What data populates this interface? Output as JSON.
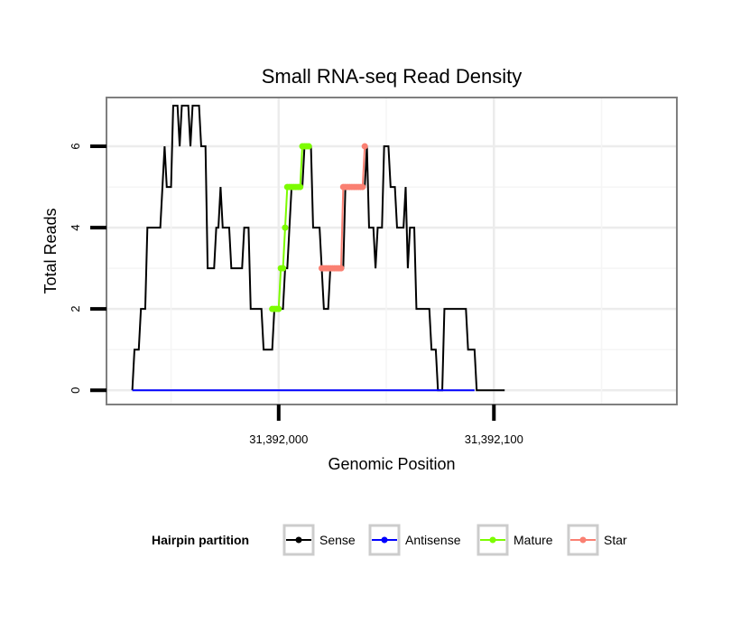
{
  "chart_data": {
    "type": "line",
    "title": "Small RNA-seq Read Density",
    "xlabel": "Genomic Position",
    "ylabel": "Total Reads",
    "xlim": [
      31391920,
      31392185
    ],
    "ylim": [
      -0.35,
      7.2
    ],
    "x_ticks": [
      {
        "value": 31392000,
        "label": "31,392,000"
      },
      {
        "value": 31392100,
        "label": "31,392,100"
      }
    ],
    "y_ticks": [
      {
        "value": 0,
        "label": "0"
      },
      {
        "value": 2,
        "label": "2"
      },
      {
        "value": 4,
        "label": "4"
      },
      {
        "value": 6,
        "label": "6"
      }
    ],
    "grid": true,
    "legend": {
      "title": "Hairpin partition",
      "placement": "bottom",
      "entries": [
        {
          "name": "Sense",
          "color": "#000000"
        },
        {
          "name": "Antisense",
          "color": "#0000ff"
        },
        {
          "name": "Mature",
          "color": "#7cfc00"
        },
        {
          "name": "Star",
          "color": "#fa8072"
        }
      ]
    },
    "series": [
      {
        "name": "Sense",
        "color": "#000000",
        "step": true,
        "points": [
          [
            31391932,
            0
          ],
          [
            31391933,
            1
          ],
          [
            31391935,
            1
          ],
          [
            31391936,
            2
          ],
          [
            31391938,
            2
          ],
          [
            31391939,
            4
          ],
          [
            31391941,
            4
          ],
          [
            31391943,
            4
          ],
          [
            31391945,
            4
          ],
          [
            31391946,
            5
          ],
          [
            31391947,
            6
          ],
          [
            31391948,
            5
          ],
          [
            31391950,
            5
          ],
          [
            31391951,
            7
          ],
          [
            31391953,
            7
          ],
          [
            31391954,
            6
          ],
          [
            31391955,
            7
          ],
          [
            31391957,
            7
          ],
          [
            31391958,
            7
          ],
          [
            31391959,
            6
          ],
          [
            31391960,
            7
          ],
          [
            31391963,
            7
          ],
          [
            31391964,
            6
          ],
          [
            31391966,
            6
          ],
          [
            31391967,
            3
          ],
          [
            31391970,
            3
          ],
          [
            31391971,
            4
          ],
          [
            31391972,
            4
          ],
          [
            31391973,
            5
          ],
          [
            31391974,
            4
          ],
          [
            31391977,
            4
          ],
          [
            31391978,
            3
          ],
          [
            31391982,
            3
          ],
          [
            31391983,
            3
          ],
          [
            31391984,
            4
          ],
          [
            31391986,
            4
          ],
          [
            31391987,
            2
          ],
          [
            31391990,
            2
          ],
          [
            31391992,
            2
          ],
          [
            31391993,
            1
          ],
          [
            31391996,
            1
          ],
          [
            31391997,
            1
          ],
          [
            31391998,
            2
          ],
          [
            31392000,
            2
          ],
          [
            31392002,
            2
          ],
          [
            31392003,
            3
          ],
          [
            31392004,
            3
          ],
          [
            31392005,
            4
          ],
          [
            31392006,
            5
          ],
          [
            31392011,
            5
          ],
          [
            31392012,
            6
          ],
          [
            31392013,
            6
          ],
          [
            31392015,
            6
          ],
          [
            31392016,
            4
          ],
          [
            31392018,
            4
          ],
          [
            31392019,
            4
          ],
          [
            31392020,
            3
          ],
          [
            31392021,
            2
          ],
          [
            31392023,
            2
          ],
          [
            31392024,
            3
          ],
          [
            31392029,
            3
          ],
          [
            31392030,
            3
          ],
          [
            31392031,
            5
          ],
          [
            31392032,
            5
          ],
          [
            31392040,
            5
          ],
          [
            31392041,
            6
          ],
          [
            31392042,
            4
          ],
          [
            31392044,
            4
          ],
          [
            31392045,
            3
          ],
          [
            31392046,
            4
          ],
          [
            31392048,
            4
          ],
          [
            31392049,
            6
          ],
          [
            31392051,
            6
          ],
          [
            31392052,
            5
          ],
          [
            31392053,
            5
          ],
          [
            31392054,
            5
          ],
          [
            31392055,
            4
          ],
          [
            31392058,
            4
          ],
          [
            31392059,
            5
          ],
          [
            31392060,
            3
          ],
          [
            31392061,
            4
          ],
          [
            31392063,
            4
          ],
          [
            31392064,
            2
          ],
          [
            31392066,
            2
          ],
          [
            31392069,
            2
          ],
          [
            31392070,
            2
          ],
          [
            31392071,
            1
          ],
          [
            31392073,
            1
          ],
          [
            31392074,
            0
          ],
          [
            31392076,
            0
          ],
          [
            31392077,
            2
          ],
          [
            31392082,
            2
          ],
          [
            31392087,
            2
          ],
          [
            31392088,
            1
          ],
          [
            31392091,
            1
          ],
          [
            31392092,
            0
          ],
          [
            31392095,
            0
          ],
          [
            31392100,
            0
          ],
          [
            31392103,
            0
          ],
          [
            31392105,
            0
          ]
        ]
      },
      {
        "name": "Antisense",
        "color": "#0000ff",
        "step": false,
        "points": [
          [
            31391932,
            0
          ],
          [
            31392091,
            0
          ]
        ]
      },
      {
        "name": "Mature",
        "color": "#7cfc00",
        "step": false,
        "points": [
          [
            31391997,
            2
          ],
          [
            31391998,
            2
          ],
          [
            31391999,
            2
          ],
          [
            31392000,
            2
          ],
          [
            31392001,
            3
          ],
          [
            31392002,
            3
          ],
          [
            31392003,
            4
          ],
          [
            31392004,
            5
          ],
          [
            31392005,
            5
          ],
          [
            31392006,
            5
          ],
          [
            31392007,
            5
          ],
          [
            31392008,
            5
          ],
          [
            31392009,
            5
          ],
          [
            31392010,
            5
          ],
          [
            31392011,
            6
          ],
          [
            31392012,
            6
          ],
          [
            31392013,
            6
          ],
          [
            31392014,
            6
          ]
        ]
      },
      {
        "name": "Star",
        "color": "#fa8072",
        "step": false,
        "points": [
          [
            31392020,
            3
          ],
          [
            31392021,
            3
          ],
          [
            31392022,
            3
          ],
          [
            31392023,
            3
          ],
          [
            31392024,
            3
          ],
          [
            31392025,
            3
          ],
          [
            31392026,
            3
          ],
          [
            31392027,
            3
          ],
          [
            31392028,
            3
          ],
          [
            31392029,
            3
          ],
          [
            31392030,
            5
          ],
          [
            31392031,
            5
          ],
          [
            31392032,
            5
          ],
          [
            31392033,
            5
          ],
          [
            31392034,
            5
          ],
          [
            31392035,
            5
          ],
          [
            31392036,
            5
          ],
          [
            31392037,
            5
          ],
          [
            31392038,
            5
          ],
          [
            31392039,
            5
          ],
          [
            31392040,
            6
          ]
        ]
      }
    ]
  }
}
